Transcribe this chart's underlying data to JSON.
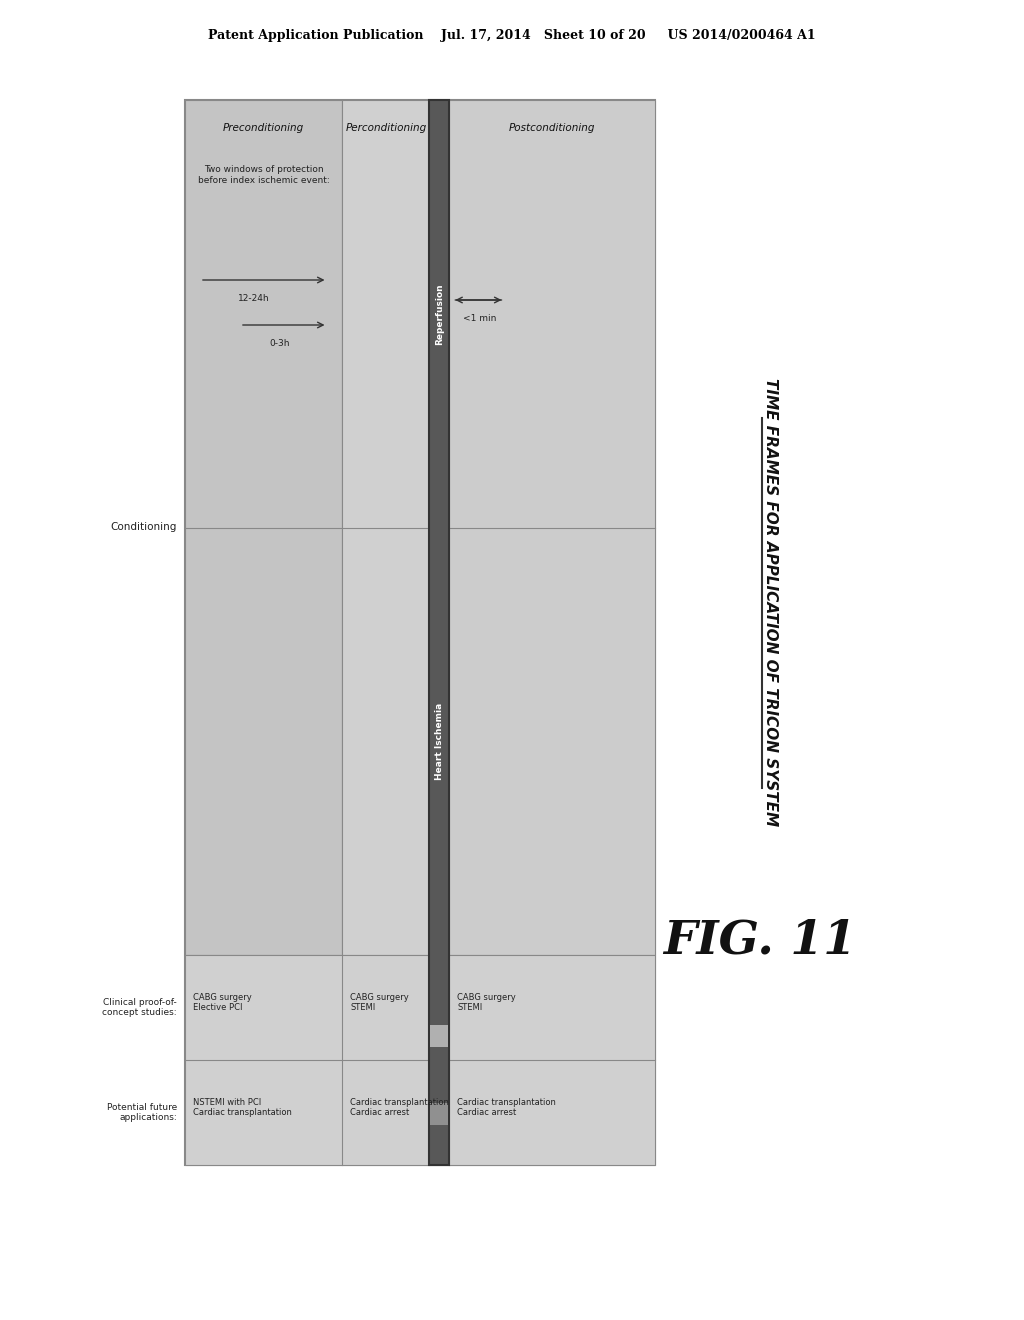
{
  "bg_color": "#ffffff",
  "header_text": "Patent Application Publication    Jul. 17, 2014   Sheet 10 of 20     US 2014/0200464 A1",
  "fig_label": "FIG. 11",
  "diagram": {
    "main_bg": "#d8d8d8",
    "central_bar_color": "#606060",
    "central_bar_light": "#a0a0a0",
    "title_rotated": "TIME FRAMES FOR APPLICATION OF TRICON SYSTEM",
    "row_labels": [
      "Conditioning",
      "Clinical proof-of-\nconcept studies:",
      "Potential future\napplications:"
    ],
    "col_headers": [
      "Preconditioning",
      "Perconditioning",
      "Postconditioning"
    ],
    "central_label_top": "Reperfusion",
    "central_label_mid": "Heart Ischemia",
    "pre_arrow1_label": "12-24h",
    "pre_arrow2_label": "0-3h",
    "pre_note": "Two windows of protection\nbefore index ischemic event:",
    "post_arrow_label": "<1 min",
    "pre_clinical1": "CABG surgery\nElective PCI",
    "pre_clinical2": "NSTEMI with PCI\nCardiac transplantation",
    "per_clinical1": "CABG surgery\nSTEMI",
    "per_clinical2": "Cardiac transplantation\nCardiac arrest",
    "post_clinical1": "CABG surgery\nSTEMI",
    "post_clinical2": "Cardiac transplantation\nCardiac arrest"
  }
}
